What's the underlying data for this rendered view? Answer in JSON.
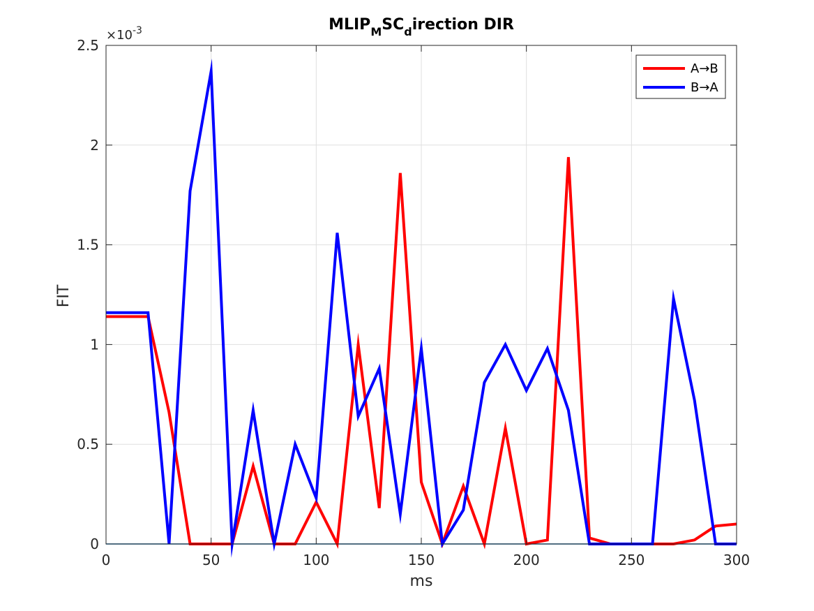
{
  "chart_data": {
    "type": "line",
    "title": {
      "parts": [
        {
          "text": "MLIP",
          "shift": "none"
        },
        {
          "text": "M",
          "shift": "sub"
        },
        {
          "text": "SC",
          "shift": "none"
        },
        {
          "text": "d",
          "shift": "sub"
        },
        {
          "text": "irection DIR",
          "shift": "none"
        }
      ]
    },
    "xlabel": "ms",
    "ylabel": "FIT",
    "xlim": [
      0,
      300
    ],
    "ylim": [
      0,
      0.0025
    ],
    "xticks": [
      0,
      50,
      100,
      150,
      200,
      250,
      300
    ],
    "yticks": [
      0,
      0.0005,
      0.001,
      0.0015,
      0.002,
      0.0025
    ],
    "ytick_labels": [
      "0",
      "0.5",
      "1",
      "1.5",
      "2",
      "2.5"
    ],
    "y_multiplier_base": "×10",
    "y_multiplier_exp": "-3",
    "grid": true,
    "legend": {
      "position": "top-right"
    },
    "x": [
      0,
      10,
      20,
      30,
      40,
      50,
      60,
      70,
      80,
      90,
      100,
      110,
      120,
      130,
      140,
      150,
      160,
      170,
      180,
      190,
      200,
      210,
      220,
      230,
      240,
      250,
      260,
      270,
      280,
      290,
      300
    ],
    "series": [
      {
        "name": "A→B",
        "color": "#ff0000",
        "values": [
          0.00114,
          0.00114,
          0.00114,
          0.00066,
          0.0,
          0.0,
          0.0,
          0.00039,
          0.0,
          0.0,
          0.00021,
          0.0,
          0.001,
          0.00018,
          0.00186,
          0.00031,
          0.0,
          0.00029,
          0.0,
          0.00058,
          0.0,
          2e-05,
          0.00194,
          3e-05,
          0.0,
          0.0,
          0.0,
          0.0,
          2e-05,
          9e-05,
          0.0001
        ]
      },
      {
        "name": "B→A",
        "color": "#0000ff",
        "values": [
          0.00116,
          0.00116,
          0.00116,
          0.0,
          0.00177,
          0.00237,
          0.0,
          0.00067,
          0.0,
          0.0005,
          0.00023,
          0.00156,
          0.00064,
          0.00088,
          0.00015,
          0.00098,
          0.0,
          0.00017,
          0.00081,
          0.001,
          0.00077,
          0.00098,
          0.00067,
          0.0,
          0.0,
          0.0,
          0.0,
          0.00123,
          0.00072,
          0.0,
          0.0
        ]
      }
    ],
    "baseline": {
      "y": 0,
      "color": "#0072bd"
    },
    "colors": {
      "axis": "#262626",
      "grid": "#dfdfdf",
      "background": "#ffffff"
    }
  }
}
